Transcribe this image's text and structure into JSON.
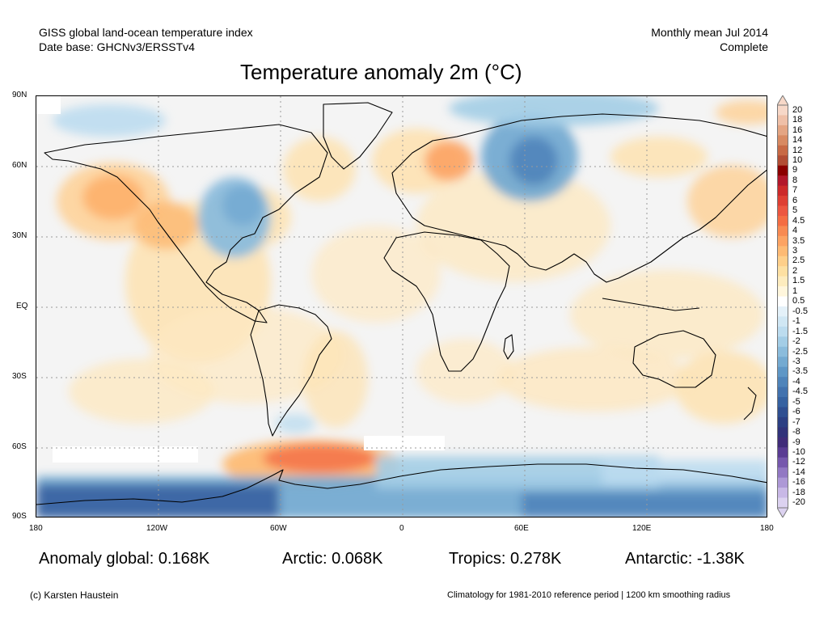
{
  "header": {
    "left_line1": "GISS global land-ocean temperature index",
    "left_line2": "Date base: GHCNv3/ERSSTv4",
    "right_line1": "Monthly mean Jul 2014",
    "right_line2": "Complete"
  },
  "title": "Temperature anomaly 2m (°C)",
  "map": {
    "lat_labels": [
      "90N",
      "60N",
      "30N",
      "EQ",
      "30S",
      "60S",
      "90S"
    ],
    "lon_labels": [
      "180",
      "120W",
      "60W",
      "0",
      "60E",
      "120E",
      "180"
    ],
    "colors": {
      "ocean_background": "#f4f4f4",
      "land_outline": "#000000"
    }
  },
  "colorbar": {
    "labels": [
      "20",
      "18",
      "16",
      "14",
      "12",
      "10",
      "9",
      "8",
      "7",
      "6",
      "5",
      "4.5",
      "4",
      "3.5",
      "3",
      "2.5",
      "2",
      "1.5",
      "1",
      "0.5",
      "-0.5",
      "-1",
      "-1.5",
      "-2",
      "-2.5",
      "-3",
      "-3.5",
      "-4",
      "-4.5",
      "-5",
      "-6",
      "-7",
      "-8",
      "-9",
      "-10",
      "-12",
      "-14",
      "-16",
      "-18",
      "-20"
    ],
    "colors": [
      "#f7d8c8",
      "#efc0a8",
      "#e4a583",
      "#d88a62",
      "#c86a45",
      "#b24d34",
      "#8b0000",
      "#b2182b",
      "#cc2a2a",
      "#de3f33",
      "#ec5640",
      "#f46d43",
      "#f88a52",
      "#fca363",
      "#fdba74",
      "#fecf8a",
      "#fde0a2",
      "#fdecbe",
      "#fff6dc",
      "#ffffff",
      "#e4f1f9",
      "#d0e7f4",
      "#bcdcef",
      "#a3cde6",
      "#8bbcdc",
      "#74aad1",
      "#5f97c6",
      "#4f84ba",
      "#4272ae",
      "#3662a1",
      "#2f4f91",
      "#2c3f83",
      "#31337a",
      "#402c79",
      "#5a3c93",
      "#7658ad",
      "#9278c3",
      "#ad98d6",
      "#c8b8e6",
      "#dcd2f0"
    ]
  },
  "stats": {
    "global": "Anomaly global: 0.168K",
    "arctic": "Arctic: 0.068K",
    "tropics": "Tropics: 0.278K",
    "antarctic": "Antarctic: -1.38K"
  },
  "footer": {
    "left": "(c) Karsten Haustein",
    "right": "Climatology for 1981-2010 reference period | 1200 km smoothing radius"
  }
}
